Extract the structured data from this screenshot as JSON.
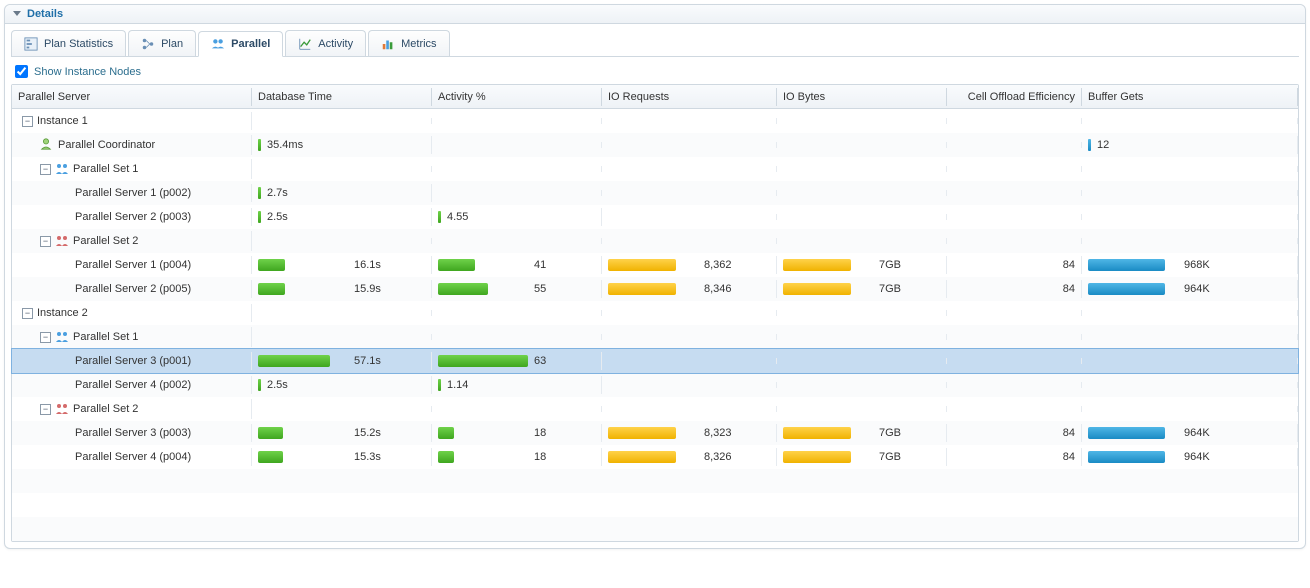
{
  "panel": {
    "title": "Details"
  },
  "tabs": [
    {
      "id": "plan-statistics",
      "label": "Plan Statistics",
      "icon": "stats"
    },
    {
      "id": "plan",
      "label": "Plan",
      "icon": "plan"
    },
    {
      "id": "parallel",
      "label": "Parallel",
      "icon": "group",
      "active": true
    },
    {
      "id": "activity",
      "label": "Activity",
      "icon": "chart"
    },
    {
      "id": "metrics",
      "label": "Metrics",
      "icon": "bars"
    }
  ],
  "checkbox": {
    "label": "Show Instance Nodes",
    "checked": true
  },
  "columns": [
    {
      "key": "parallel_server",
      "label": "Parallel Server"
    },
    {
      "key": "database_time",
      "label": "Database Time"
    },
    {
      "key": "activity_pct",
      "label": "Activity %"
    },
    {
      "key": "io_requests",
      "label": "IO Requests"
    },
    {
      "key": "io_bytes",
      "label": "IO Bytes"
    },
    {
      "key": "cell_offload",
      "label": "Cell Offload Efficiency"
    },
    {
      "key": "buffer_gets",
      "label": "Buffer Gets"
    }
  ],
  "colors": {
    "green": "#4db828",
    "yellow": "#f5bd1f",
    "blue": "#2d9cd0",
    "panel_border": "#cfd8e0",
    "selected_bg": "#c6dcf1"
  },
  "tree": [
    {
      "indent": 0,
      "toggle": "-",
      "label": "Instance 1"
    },
    {
      "indent": 1,
      "icon": "person",
      "label": "Parallel Coordinator",
      "db_time": {
        "value": "35.4ms",
        "pct": 0,
        "tick": true
      },
      "buffer": {
        "value": "12",
        "pct": 0,
        "tick": true
      }
    },
    {
      "indent": 1,
      "toggle": "-",
      "icon": "group-blue",
      "label": "Parallel Set 1"
    },
    {
      "indent": 2,
      "label": "Parallel Server 1 (p002)",
      "db_time": {
        "value": "2.7s",
        "pct": 5,
        "tick": true
      }
    },
    {
      "indent": 2,
      "label": "Parallel Server 2 (p003)",
      "db_time": {
        "value": "2.5s",
        "pct": 5,
        "tick": true
      },
      "activity": {
        "value": "4.55",
        "pct": 5,
        "tick": true
      }
    },
    {
      "indent": 1,
      "toggle": "-",
      "icon": "group-red",
      "label": "Parallel Set 2"
    },
    {
      "indent": 2,
      "label": "Parallel Server 1 (p004)",
      "db_time": {
        "value": "16.1s",
        "pct": 30
      },
      "activity": {
        "value": "41",
        "pct": 41
      },
      "io_req": {
        "value": "8,362",
        "pct": 75
      },
      "io_bytes": {
        "value": "7GB",
        "pct": 75
      },
      "cell": "84",
      "buffer": {
        "value": "968K",
        "pct": 85
      }
    },
    {
      "indent": 2,
      "label": "Parallel Server 2 (p005)",
      "db_time": {
        "value": "15.9s",
        "pct": 30
      },
      "activity": {
        "value": "55",
        "pct": 55
      },
      "io_req": {
        "value": "8,346",
        "pct": 75
      },
      "io_bytes": {
        "value": "7GB",
        "pct": 75
      },
      "cell": "84",
      "buffer": {
        "value": "964K",
        "pct": 85
      }
    },
    {
      "indent": 0,
      "toggle": "-",
      "label": "Instance 2"
    },
    {
      "indent": 1,
      "toggle": "-",
      "icon": "group-blue",
      "label": "Parallel Set 1"
    },
    {
      "indent": 2,
      "label": "Parallel Server 3 (p001)",
      "selected": true,
      "db_time": {
        "value": "57.1s",
        "pct": 80
      },
      "activity": {
        "value": "63",
        "pct": 100
      }
    },
    {
      "indent": 2,
      "label": "Parallel Server 4 (p002)",
      "db_time": {
        "value": "2.5s",
        "pct": 5,
        "tick": true
      },
      "activity": {
        "value": "1.14",
        "pct": 3,
        "tick": true
      }
    },
    {
      "indent": 1,
      "toggle": "-",
      "icon": "group-red",
      "label": "Parallel Set 2"
    },
    {
      "indent": 2,
      "label": "Parallel Server 3 (p003)",
      "db_time": {
        "value": "15.2s",
        "pct": 28
      },
      "activity": {
        "value": "18",
        "pct": 18
      },
      "io_req": {
        "value": "8,323",
        "pct": 75
      },
      "io_bytes": {
        "value": "7GB",
        "pct": 75
      },
      "cell": "84",
      "buffer": {
        "value": "964K",
        "pct": 85
      }
    },
    {
      "indent": 2,
      "label": "Parallel Server 4 (p004)",
      "db_time": {
        "value": "15.3s",
        "pct": 28
      },
      "activity": {
        "value": "18",
        "pct": 18
      },
      "io_req": {
        "value": "8,326",
        "pct": 75
      },
      "io_bytes": {
        "value": "7GB",
        "pct": 75
      },
      "cell": "84",
      "buffer": {
        "value": "964K",
        "pct": 85
      }
    }
  ]
}
